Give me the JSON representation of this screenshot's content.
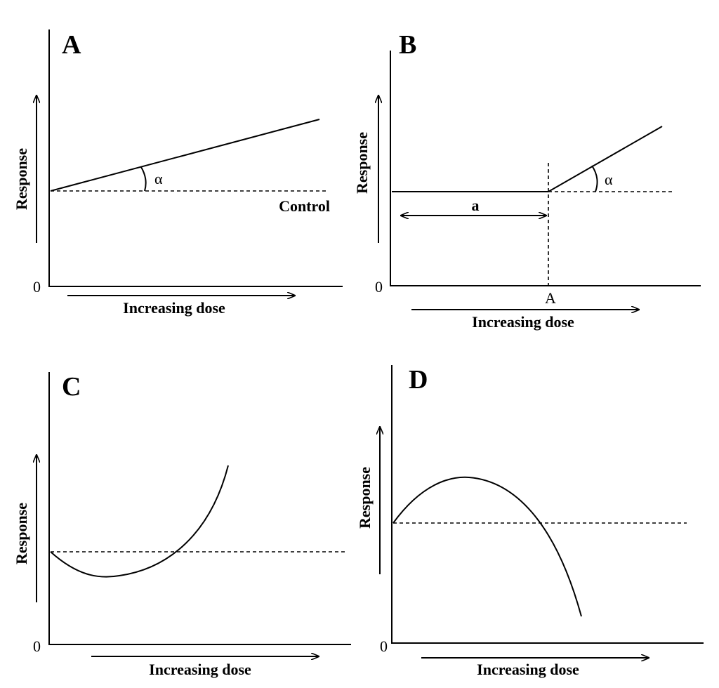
{
  "panels": {
    "a": {
      "letter": "A",
      "y_label": "Response",
      "x_label": "Increasing dose",
      "zero": "0",
      "angle": "α",
      "control": "Control"
    },
    "b": {
      "letter": "B",
      "y_label": "Response",
      "x_label": "Increasing dose",
      "zero": "0",
      "angle": "α",
      "range": "a",
      "threshold": "A"
    },
    "c": {
      "letter": "C",
      "y_label": "Response",
      "x_label": "Increasing dose",
      "zero": "0"
    },
    "d": {
      "letter": "D",
      "y_label": "Response",
      "x_label": "Increasing dose",
      "zero": "0"
    }
  }
}
